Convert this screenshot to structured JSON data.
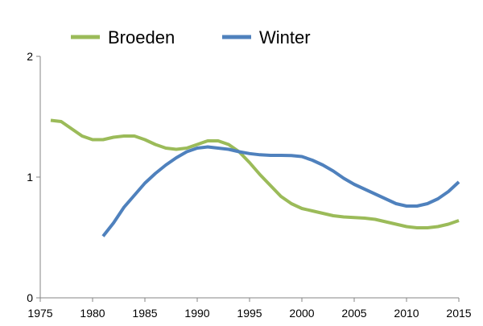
{
  "chart_data": {
    "type": "line",
    "title": "",
    "xlabel": "",
    "ylabel": "",
    "xlim": [
      1975,
      2015
    ],
    "ylim": [
      0,
      2
    ],
    "x_ticks": [
      "1975",
      "1980",
      "1985",
      "1990",
      "1995",
      "2000",
      "2005",
      "2010",
      "2015"
    ],
    "y_ticks": [
      "0",
      "1",
      "2"
    ],
    "grid": false,
    "legend_position": "top-left",
    "series": [
      {
        "name": "Broeden",
        "color": "#9bbb59",
        "points": [
          [
            1976,
            1.47
          ],
          [
            1977,
            1.46
          ],
          [
            1978,
            1.4
          ],
          [
            1979,
            1.34
          ],
          [
            1980,
            1.31
          ],
          [
            1981,
            1.31
          ],
          [
            1982,
            1.33
          ],
          [
            1983,
            1.34
          ],
          [
            1984,
            1.34
          ],
          [
            1985,
            1.31
          ],
          [
            1986,
            1.27
          ],
          [
            1987,
            1.24
          ],
          [
            1988,
            1.23
          ],
          [
            1989,
            1.24
          ],
          [
            1990,
            1.27
          ],
          [
            1991,
            1.3
          ],
          [
            1992,
            1.3
          ],
          [
            1993,
            1.27
          ],
          [
            1994,
            1.21
          ],
          [
            1995,
            1.12
          ],
          [
            1996,
            1.02
          ],
          [
            1997,
            0.93
          ],
          [
            1998,
            0.84
          ],
          [
            1999,
            0.78
          ],
          [
            2000,
            0.74
          ],
          [
            2001,
            0.72
          ],
          [
            2002,
            0.7
          ],
          [
            2003,
            0.68
          ],
          [
            2004,
            0.67
          ],
          [
            2005,
            0.665
          ],
          [
            2006,
            0.66
          ],
          [
            2007,
            0.65
          ],
          [
            2008,
            0.63
          ],
          [
            2009,
            0.61
          ],
          [
            2010,
            0.59
          ],
          [
            2011,
            0.58
          ],
          [
            2012,
            0.58
          ],
          [
            2013,
            0.59
          ],
          [
            2014,
            0.61
          ],
          [
            2015,
            0.64
          ]
        ]
      },
      {
        "name": "Winter",
        "color": "#4f81bd",
        "points": [
          [
            1981,
            0.51
          ],
          [
            1982,
            0.62
          ],
          [
            1983,
            0.75
          ],
          [
            1984,
            0.85
          ],
          [
            1985,
            0.95
          ],
          [
            1986,
            1.03
          ],
          [
            1987,
            1.1
          ],
          [
            1988,
            1.16
          ],
          [
            1989,
            1.21
          ],
          [
            1990,
            1.24
          ],
          [
            1991,
            1.25
          ],
          [
            1992,
            1.24
          ],
          [
            1993,
            1.23
          ],
          [
            1994,
            1.21
          ],
          [
            1995,
            1.195
          ],
          [
            1996,
            1.185
          ],
          [
            1997,
            1.18
          ],
          [
            1998,
            1.18
          ],
          [
            1999,
            1.178
          ],
          [
            2000,
            1.17
          ],
          [
            2001,
            1.14
          ],
          [
            2002,
            1.1
          ],
          [
            2003,
            1.05
          ],
          [
            2004,
            0.99
          ],
          [
            2005,
            0.94
          ],
          [
            2006,
            0.9
          ],
          [
            2007,
            0.86
          ],
          [
            2008,
            0.82
          ],
          [
            2009,
            0.78
          ],
          [
            2010,
            0.76
          ],
          [
            2011,
            0.76
          ],
          [
            2012,
            0.78
          ],
          [
            2013,
            0.82
          ],
          [
            2014,
            0.88
          ],
          [
            2015,
            0.96
          ]
        ]
      }
    ]
  }
}
